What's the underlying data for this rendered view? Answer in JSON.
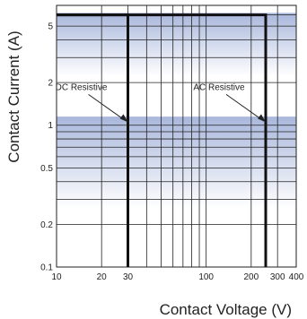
{
  "chart_data": {
    "type": "line",
    "xlabel": "Contact Voltage (V)",
    "ylabel": "Contact Current (A)",
    "x_scale": "log",
    "y_scale": "log",
    "xlim": [
      10,
      400
    ],
    "ylim": [
      0.1,
      7
    ],
    "grid": true,
    "x_ticks": [
      {
        "value": 10,
        "label": "10"
      },
      {
        "value": 20,
        "label": "20"
      },
      {
        "value": 30,
        "label": "30"
      },
      {
        "value": 100,
        "label": "100"
      },
      {
        "value": 200,
        "label": "200"
      },
      {
        "value": 300,
        "label": "300"
      },
      {
        "value": 400,
        "label": "400"
      }
    ],
    "y_ticks": [
      {
        "value": 5,
        "label": "5"
      },
      {
        "value": 2,
        "label": "2"
      },
      {
        "value": 1,
        "label": "1"
      },
      {
        "value": 0.5,
        "label": "0.5"
      },
      {
        "value": 0.2,
        "label": "0.2"
      },
      {
        "value": 0.1,
        "label": "0.1"
      }
    ],
    "series": [
      {
        "name": "DC Resistive",
        "x": [
          30,
          30,
          10
        ],
        "y": [
          0.1,
          6,
          6
        ]
      },
      {
        "name": "AC Resistive",
        "x": [
          250,
          250,
          10
        ],
        "y": [
          0.1,
          6,
          6
        ]
      }
    ],
    "annotations": [
      {
        "text": "DC Resistive",
        "x": 30,
        "y": 1.05
      },
      {
        "text": "AC Resistive",
        "x": 250,
        "y": 1.05
      }
    ],
    "colors": {
      "band": "#a9b7dc",
      "grid": "#222222",
      "series": "#111111"
    }
  }
}
